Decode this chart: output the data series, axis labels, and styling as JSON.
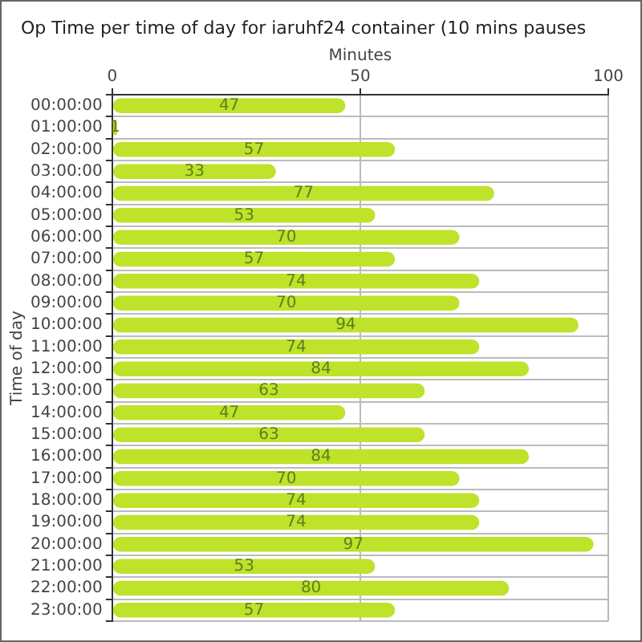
{
  "chart_data": {
    "type": "bar",
    "orientation": "horizontal",
    "title": "Op Time per time of day for iaruhf24 container (10 mins pauses",
    "xlabel": "Minutes",
    "ylabel": "Time of day",
    "categories": [
      "00:00:00",
      "01:00:00",
      "02:00:00",
      "03:00:00",
      "04:00:00",
      "05:00:00",
      "06:00:00",
      "07:00:00",
      "08:00:00",
      "09:00:00",
      "10:00:00",
      "11:00:00",
      "12:00:00",
      "13:00:00",
      "14:00:00",
      "15:00:00",
      "16:00:00",
      "17:00:00",
      "18:00:00",
      "19:00:00",
      "20:00:00",
      "21:00:00",
      "22:00:00",
      "23:00:00"
    ],
    "values": [
      47,
      1,
      57,
      33,
      77,
      53,
      70,
      57,
      74,
      70,
      94,
      74,
      84,
      63,
      47,
      63,
      84,
      70,
      74,
      74,
      97,
      53,
      80,
      57
    ],
    "color": "#bfe22a",
    "xlim": [
      0,
      100
    ],
    "xticks": [
      0,
      50,
      100
    ],
    "grid": true,
    "data_labels": true,
    "legend": false
  }
}
